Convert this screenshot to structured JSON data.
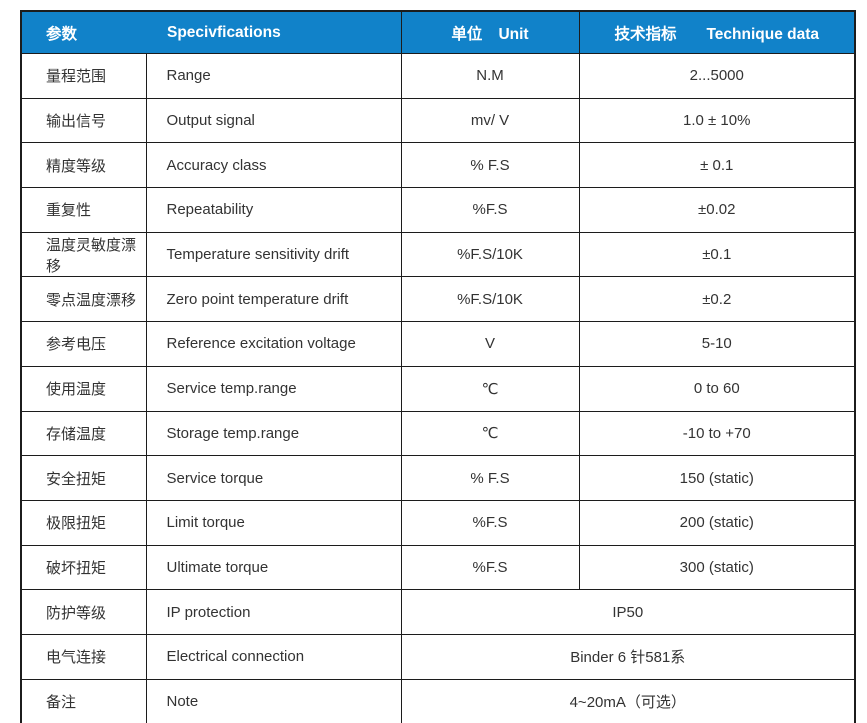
{
  "colors": {
    "header_bg": "#1182c9",
    "header_text": "#ffffff",
    "body_text": "#333333",
    "border": "#1c1c1c"
  },
  "table": {
    "header": {
      "param_zh": "参数",
      "spec_en": "Specivfications",
      "unit_zh": "单位",
      "unit_en": "Unit",
      "data_zh": "技术指标",
      "data_en": "Technique data"
    },
    "rows": [
      {
        "param_zh": "量程范围",
        "spec_en": "Range",
        "unit": "N.M",
        "value": "2...5000",
        "merged": false
      },
      {
        "param_zh": "输出信号",
        "spec_en": "Output signal",
        "unit": "mv/ V",
        "value": "1.0 ± 10%",
        "merged": false
      },
      {
        "param_zh": "精度等级",
        "spec_en": "Accuracy class",
        "unit": "% F.S",
        "value": "± 0.1",
        "merged": false
      },
      {
        "param_zh": "重复性",
        "spec_en": "Repeatability",
        "unit": "%F.S",
        "value": "±0.02",
        "merged": false
      },
      {
        "param_zh": "温度灵敏度漂移",
        "spec_en": "Temperature sensitivity drift",
        "unit": "%F.S/10K",
        "value": "±0.1",
        "merged": false
      },
      {
        "param_zh": "零点温度漂移",
        "spec_en": "Zero point temperature drift",
        "unit": "%F.S/10K",
        "value": "±0.2",
        "merged": false
      },
      {
        "param_zh": "参考电压",
        "spec_en": "Reference excitation voltage",
        "unit": "V",
        "value": "5-10",
        "merged": false
      },
      {
        "param_zh": "使用温度",
        "spec_en": "Service temp.range",
        "unit": "℃",
        "value": "0 to 60",
        "merged": false
      },
      {
        "param_zh": "存储温度",
        "spec_en": "Storage temp.range",
        "unit": "℃",
        "value": "-10 to +70",
        "merged": false
      },
      {
        "param_zh": "安全扭矩",
        "spec_en": "Service torque",
        "unit": "% F.S",
        "value": "150 (static)",
        "merged": false
      },
      {
        "param_zh": "极限扭矩",
        "spec_en": "Limit torque",
        "unit": "%F.S",
        "value": "200 (static)",
        "merged": false
      },
      {
        "param_zh": "破坏扭矩",
        "spec_en": "Ultimate torque",
        "unit": "%F.S",
        "value": "300 (static)",
        "merged": false
      },
      {
        "param_zh": "防护等级",
        "spec_en": "IP protection",
        "unit": "",
        "value": "IP50",
        "merged": true
      },
      {
        "param_zh": "电气连接",
        "spec_en": "Electrical connection",
        "unit": "",
        "value": "Binder 6 针581系",
        "merged": true
      },
      {
        "param_zh": "备注",
        "spec_en": "Note",
        "unit": "",
        "value": "4~20mA（可选）",
        "merged": true
      }
    ]
  }
}
